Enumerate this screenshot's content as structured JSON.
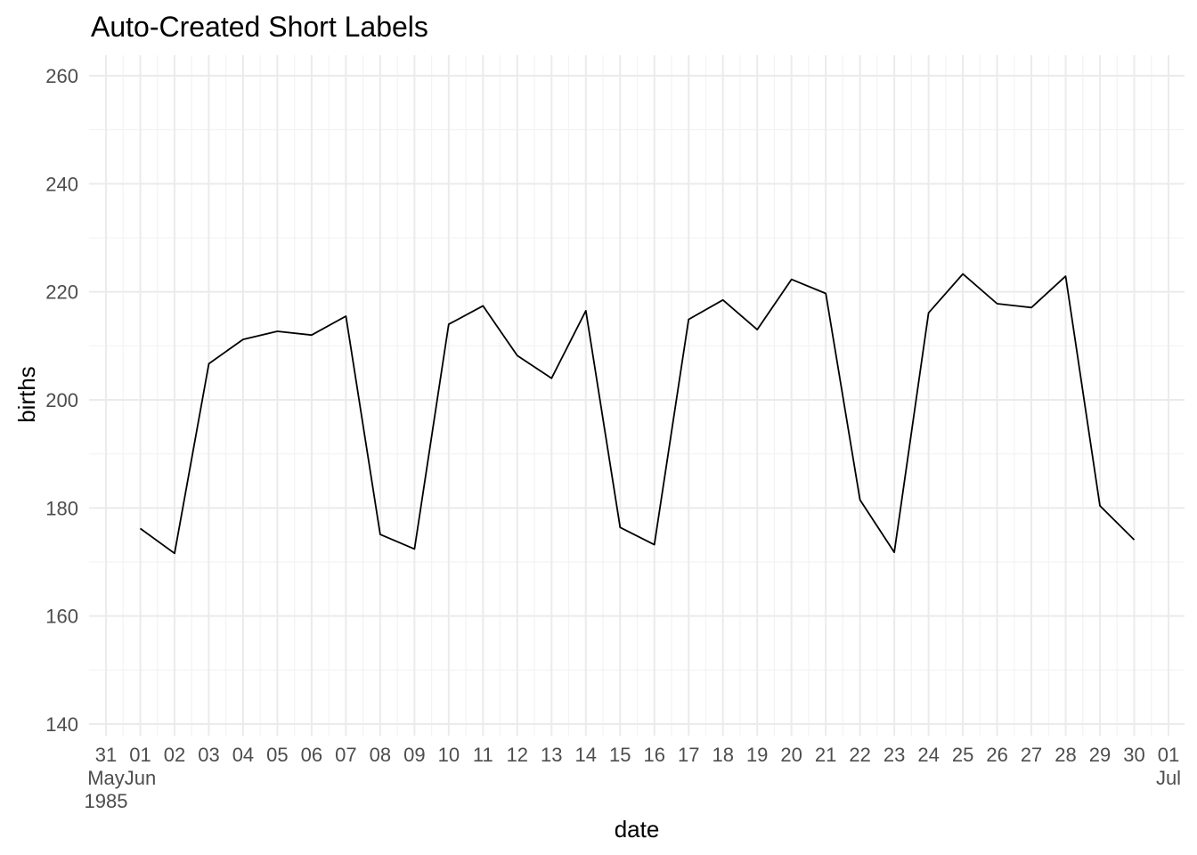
{
  "chart_data": {
    "type": "line",
    "title": "Auto-Created Short Labels",
    "xlabel": "date",
    "ylabel": "births",
    "xlim": [
      "1985-05-31",
      "1985-07-01"
    ],
    "ylim": [
      140,
      260
    ],
    "y_ticks": [
      140,
      160,
      180,
      200,
      220,
      240,
      260
    ],
    "x_tick_dates": [
      "1985-05-31",
      "1985-06-01",
      "1985-06-02",
      "1985-06-03",
      "1985-06-04",
      "1985-06-05",
      "1985-06-06",
      "1985-06-07",
      "1985-06-08",
      "1985-06-09",
      "1985-06-10",
      "1985-06-11",
      "1985-06-12",
      "1985-06-13",
      "1985-06-14",
      "1985-06-15",
      "1985-06-16",
      "1985-06-17",
      "1985-06-18",
      "1985-06-19",
      "1985-06-20",
      "1985-06-21",
      "1985-06-22",
      "1985-06-23",
      "1985-06-24",
      "1985-06-25",
      "1985-06-26",
      "1985-06-27",
      "1985-06-28",
      "1985-06-29",
      "1985-06-30",
      "1985-07-01"
    ],
    "x_tick_labels": [
      [
        "31",
        "May",
        "1985"
      ],
      [
        "01",
        "Jun"
      ],
      [
        "02"
      ],
      [
        "03"
      ],
      [
        "04"
      ],
      [
        "05"
      ],
      [
        "06"
      ],
      [
        "07"
      ],
      [
        "08"
      ],
      [
        "09"
      ],
      [
        "10"
      ],
      [
        "11"
      ],
      [
        "12"
      ],
      [
        "13"
      ],
      [
        "14"
      ],
      [
        "15"
      ],
      [
        "16"
      ],
      [
        "17"
      ],
      [
        "18"
      ],
      [
        "19"
      ],
      [
        "20"
      ],
      [
        "21"
      ],
      [
        "22"
      ],
      [
        "23"
      ],
      [
        "24"
      ],
      [
        "25"
      ],
      [
        "26"
      ],
      [
        "27"
      ],
      [
        "28"
      ],
      [
        "29"
      ],
      [
        "30"
      ],
      [
        "01",
        "Jul"
      ]
    ],
    "grid": true,
    "series": [
      {
        "x": [
          "1985-06-01",
          "1985-06-02",
          "1985-06-03",
          "1985-06-04",
          "1985-06-05",
          "1985-06-06",
          "1985-06-07",
          "1985-06-08",
          "1985-06-09",
          "1985-06-10",
          "1985-06-11",
          "1985-06-12",
          "1985-06-13",
          "1985-06-14",
          "1985-06-15",
          "1985-06-16",
          "1985-06-17",
          "1985-06-18",
          "1985-06-19",
          "1985-06-20",
          "1985-06-21",
          "1985-06-22",
          "1985-06-23",
          "1985-06-24",
          "1985-06-25",
          "1985-06-26",
          "1985-06-27",
          "1985-06-28",
          "1985-06-29",
          "1985-06-30"
        ],
        "values": [
          176.2,
          171.6,
          206.7,
          211.2,
          212.7,
          212.0,
          215.5,
          175.1,
          172.4,
          214.0,
          217.4,
          208.2,
          204.0,
          216.5,
          176.4,
          173.2,
          214.9,
          218.5,
          213.0,
          222.3,
          219.7,
          181.5,
          171.8,
          216.1,
          223.3,
          217.8,
          217.1,
          222.9,
          180.4,
          174.1
        ],
        "color": "#000000"
      }
    ]
  }
}
